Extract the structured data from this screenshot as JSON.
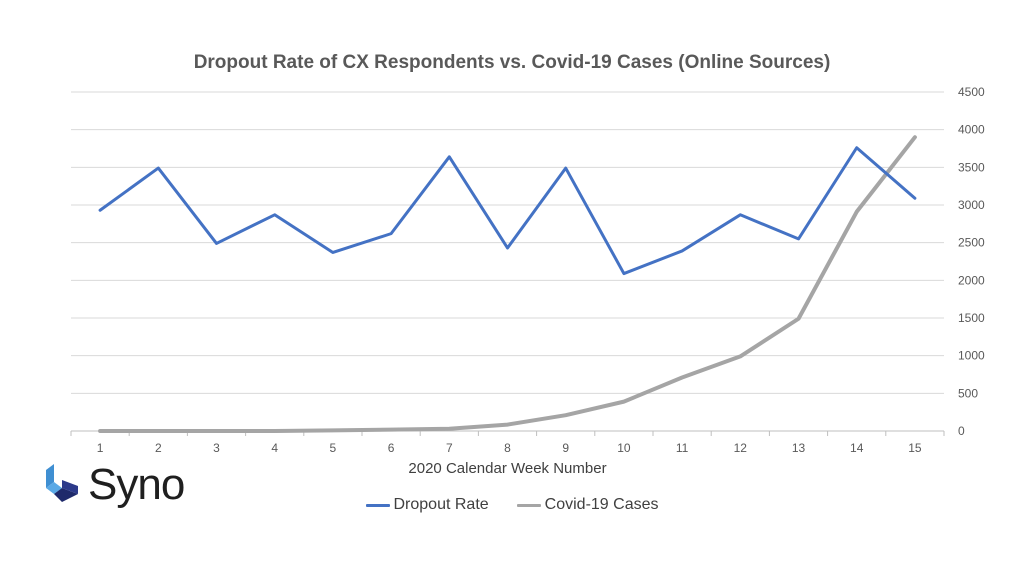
{
  "chart_data": {
    "type": "line",
    "title": "Dropout Rate of CX Respondents vs. Covid-19 Cases (Online Sources)",
    "xlabel": "2020 Calendar Week Number",
    "ylabel": "",
    "categories": [
      "1",
      "2",
      "3",
      "4",
      "5",
      "6",
      "7",
      "8",
      "9",
      "10",
      "11",
      "12",
      "13",
      "14",
      "15"
    ],
    "y_ticks": [
      "0",
      "500",
      "1000",
      "1500",
      "2000",
      "2500",
      "3000",
      "3500",
      "4000",
      "4500"
    ],
    "ylim": [
      0,
      4500
    ],
    "grid": true,
    "legend_position": "bottom",
    "series": [
      {
        "name": "Dropout Rate",
        "color": "#4472c4",
        "note_values_on_right_axis_scale": true,
        "values": [
          2930,
          3490,
          2490,
          2870,
          2370,
          2620,
          3640,
          2430,
          3490,
          2090,
          2390,
          2870,
          2550,
          3760,
          3090
        ]
      },
      {
        "name": "Covid-19 Cases",
        "color": "#a5a5a5",
        "values": [
          0,
          0,
          0,
          0,
          8,
          18,
          30,
          85,
          210,
          390,
          710,
          990,
          1490,
          2910,
          3900
        ]
      }
    ]
  },
  "logo": {
    "text": "Syno",
    "icon": "syno-cube-icon",
    "colors": [
      "#3f8fd2",
      "#1f2a6b"
    ]
  }
}
